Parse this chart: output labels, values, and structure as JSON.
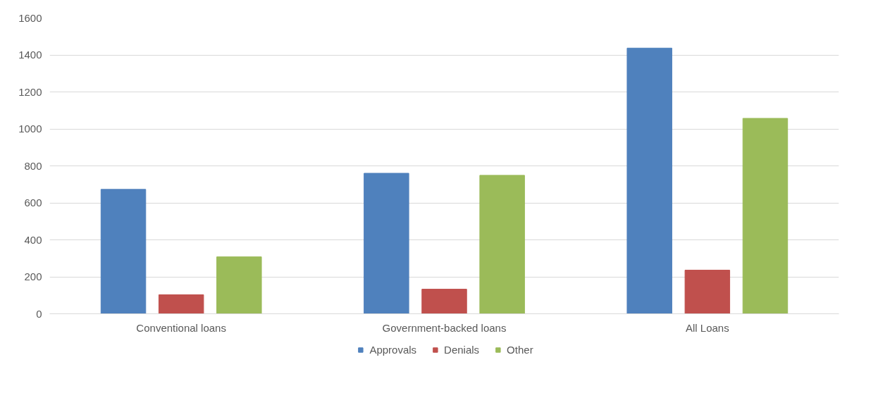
{
  "chart_data": {
    "type": "bar",
    "categories": [
      "Conventional loans",
      "Government-backed loans",
      "All Loans"
    ],
    "series": [
      {
        "name": "Approvals",
        "color": "#4f81bd",
        "values": [
          673,
          760,
          1437
        ]
      },
      {
        "name": "Denials",
        "color": "#c0504d",
        "values": [
          103,
          133,
          236
        ]
      },
      {
        "name": "Other",
        "color": "#9bbb59",
        "values": [
          308,
          749,
          1057
        ]
      }
    ],
    "ylim": [
      0,
      1600
    ],
    "yticks": [
      0,
      200,
      400,
      600,
      800,
      1000,
      1200,
      1400,
      1600
    ],
    "grid": "y",
    "legend": "bottom"
  }
}
